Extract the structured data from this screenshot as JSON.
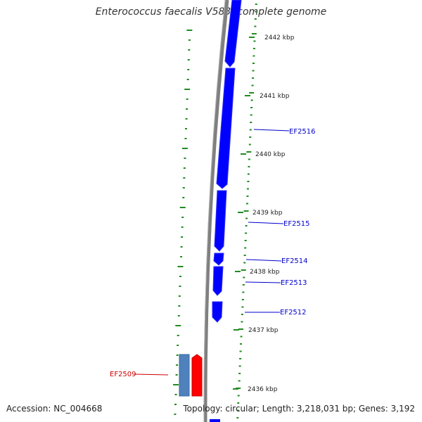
{
  "title": "Enterococcus faecalis V583, complete genome",
  "accession": "Accession: NC_004668",
  "footer_info": "Topology: circular; Length: 3,218,031 bp; Genes: 3,192",
  "colors": {
    "backbone": "#808080",
    "cds_forward": "#0000ff",
    "highlight_red": "#ff0000",
    "highlight_blue": "#4f81bd",
    "gc_ticks": "#228b22",
    "gene_label": "#0000cc",
    "highlight_label": "#cc0000",
    "ruler_text": "#222222"
  },
  "ruler_labels": [
    "2442 kbp",
    "2441 kbp",
    "2440 kbp",
    "2439 kbp",
    "2438 kbp",
    "2437 kbp",
    "2436 kbp"
  ],
  "gene_labels": [
    {
      "text": "EF2516",
      "color": "blue"
    },
    {
      "text": "EF2515",
      "color": "blue"
    },
    {
      "text": "EF2514",
      "color": "blue"
    },
    {
      "text": "EF2513",
      "color": "blue"
    },
    {
      "text": "EF2512",
      "color": "blue"
    },
    {
      "text": "EF2509",
      "color": "red"
    }
  ]
}
